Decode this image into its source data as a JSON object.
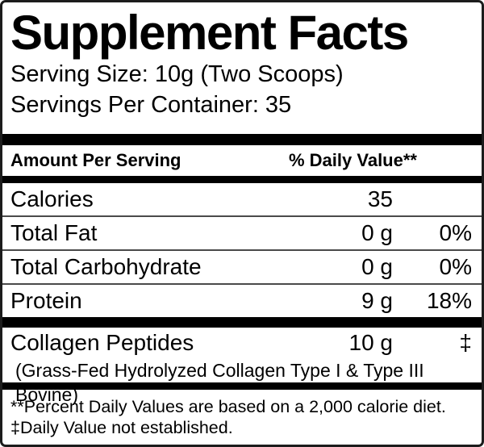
{
  "title": "Supplement Facts",
  "serving": {
    "size": "Serving Size: 10g (Two Scoops)",
    "per_container": "Servings Per Container: 35"
  },
  "table": {
    "amount_header": "Amount Per Serving",
    "dv_header": "% Daily Value**",
    "rows": [
      {
        "name": "Calories",
        "amount": "35",
        "dv": ""
      },
      {
        "name": "Total Fat",
        "amount": "0 g",
        "dv": "0%"
      },
      {
        "name": "Total Carbohydrate",
        "amount": "0 g",
        "dv": "0%"
      },
      {
        "name": "Protein",
        "amount": "9 g",
        "dv": "18%"
      }
    ],
    "supplement_rows": [
      {
        "name": "Collagen Peptides",
        "amount": "10 g",
        "dv": "‡",
        "detail": "(Grass-Fed Hydrolyzed Collagen Type I & Type III Bovine)"
      }
    ]
  },
  "footnotes": [
    "**Percent Daily Values are based on a 2,000 calorie diet.",
    "‡Daily Value not established."
  ],
  "colors": {
    "text": "#000000",
    "background": "#ffffff",
    "bar": "#000000",
    "divider": "#4a4a4a"
  }
}
